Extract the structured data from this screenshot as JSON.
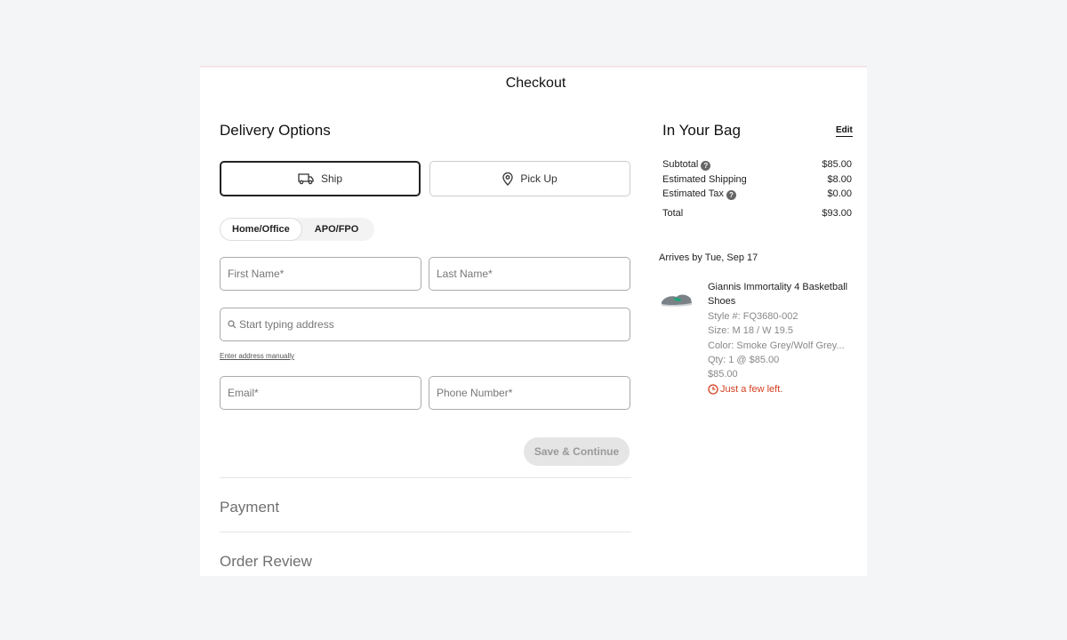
{
  "header": {
    "title": "Checkout"
  },
  "delivery": {
    "title": "Delivery Options",
    "ship_label": "Ship",
    "pickup_label": "Pick Up",
    "selected": "Ship",
    "address_types": [
      "Home/Office",
      "APO/FPO"
    ],
    "selected_address_type": "Home/Office",
    "fields": {
      "first_name": "First Name*",
      "last_name": "Last Name*",
      "address": "Start typing address",
      "email": "Email*",
      "phone": "Phone Number*"
    },
    "manual_link": "Enter address manually",
    "save_label": "Save & Continue"
  },
  "sections": {
    "payment": "Payment",
    "review": "Order Review"
  },
  "bag": {
    "title": "In Your Bag",
    "edit_label": "Edit",
    "summary": [
      {
        "label": "Subtotal",
        "value": "$85.00"
      },
      {
        "label": "Estimated Shipping",
        "value": "$8.00"
      },
      {
        "label": "Estimated Tax",
        "value": "$0.00"
      },
      {
        "label": "Total",
        "value": "$93.00"
      }
    ],
    "arrival": "Arrives by Tue, Sep 17",
    "item": {
      "name": "Giannis Immortality 4 Basketball Shoes",
      "style": "Style #: FQ3680-002",
      "size": "Size: M 18 / W 19.5",
      "color": "Color: Smoke Grey/Wolf Grey...",
      "qty": "Qty: 1 @ $85.00",
      "price": "$85.00",
      "stock": "Just a few left."
    }
  },
  "colors": {
    "warning": "#d43f21",
    "accent": "#111111"
  }
}
